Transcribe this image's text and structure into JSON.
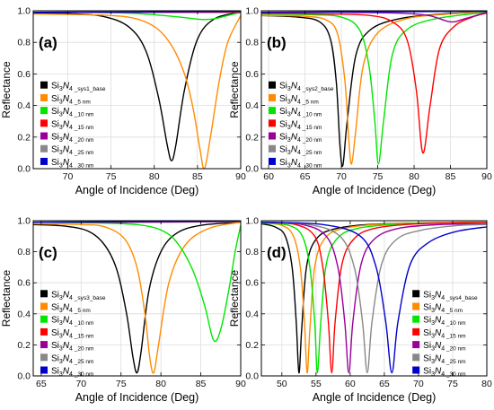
{
  "chart_data": [
    {
      "type": "line",
      "panel_label": "(a)",
      "xlabel": "Angle of Incidence (Deg)",
      "ylabel": "Reflectance",
      "xlim": [
        66,
        90
      ],
      "ylim": [
        0,
        1
      ],
      "xticks": [
        "70",
        "75",
        "80",
        "85",
        "90"
      ],
      "yticks": [
        "0.0",
        "0.2",
        "0.4",
        "0.6",
        "0.8",
        "1.0"
      ],
      "grid": true,
      "legend_position": "lower-left",
      "series": [
        {
          "name": "Si3N4 _sys1_base",
          "color": "#000000",
          "x": [
            66,
            70,
            74,
            77,
            79,
            80.5,
            81.5,
            82,
            82.5,
            83.5,
            85,
            87,
            90
          ],
          "y": [
            0.985,
            0.982,
            0.965,
            0.9,
            0.75,
            0.45,
            0.15,
            0.05,
            0.15,
            0.5,
            0.82,
            0.95,
            0.99
          ]
        },
        {
          "name": "Si3N4 _5 nm",
          "color": "#ff8c00",
          "x": [
            66,
            72,
            77,
            80,
            82,
            83.5,
            84.5,
            85.3,
            85.8,
            86.5,
            87.5,
            88.5,
            90
          ],
          "y": [
            0.98,
            0.975,
            0.96,
            0.9,
            0.78,
            0.6,
            0.38,
            0.12,
            0.0,
            0.2,
            0.55,
            0.8,
            0.97
          ]
        },
        {
          "name": "Si3N4 _10 nm",
          "color": "#00e600",
          "x": [
            66,
            72,
            77,
            80,
            83,
            85.5,
            87,
            88.5,
            90
          ],
          "y": [
            0.99,
            0.99,
            0.985,
            0.975,
            0.96,
            0.945,
            0.95,
            0.97,
            0.99
          ]
        },
        {
          "name": "Si3N4 _15 nm",
          "color": "#ff0000",
          "x": [
            66,
            80,
            90
          ],
          "y": [
            0.99,
            0.99,
            0.99
          ]
        },
        {
          "name": "Si3N4 _20 nm",
          "color": "#990099",
          "x": [
            66,
            80,
            90
          ],
          "y": [
            0.99,
            0.992,
            0.995
          ]
        },
        {
          "name": "Si3N4 _25 nm",
          "color": "#888888",
          "x": [
            66,
            80,
            90
          ],
          "y": [
            0.99,
            0.993,
            0.995
          ]
        },
        {
          "name": "Si3N4 _30 nm",
          "color": "#0000cc",
          "x": [
            66,
            80,
            90
          ],
          "y": [
            0.99,
            0.993,
            0.996
          ]
        }
      ]
    },
    {
      "type": "line",
      "panel_label": "(b)",
      "xlabel": "Angle of Incidence (Deg)",
      "ylabel": "Reflectance",
      "xlim": [
        59,
        90
      ],
      "ylim": [
        0,
        1
      ],
      "xticks": [
        "60",
        "65",
        "70",
        "75",
        "80",
        "85",
        "90"
      ],
      "yticks": [
        "0.0",
        "0.2",
        "0.4",
        "0.6",
        "0.8",
        "1.0"
      ],
      "grid": true,
      "legend_position": "lower-left",
      "series": [
        {
          "name": "Si3N4 _sys2_base",
          "color": "#000000",
          "x": [
            59,
            64,
            67,
            68.5,
            69.3,
            69.8,
            70.2,
            70.8,
            72,
            74,
            78,
            84,
            90
          ],
          "y": [
            0.97,
            0.96,
            0.93,
            0.82,
            0.55,
            0.15,
            0.02,
            0.3,
            0.72,
            0.88,
            0.95,
            0.98,
            0.99
          ]
        },
        {
          "name": "Si3N4 _5 nm",
          "color": "#ff8c00",
          "x": [
            59,
            65,
            68,
            69.5,
            70.5,
            71,
            71.4,
            72,
            73,
            75,
            79,
            85,
            90
          ],
          "y": [
            0.97,
            0.965,
            0.94,
            0.85,
            0.55,
            0.2,
            0.03,
            0.25,
            0.65,
            0.86,
            0.95,
            0.98,
            0.99
          ]
        },
        {
          "name": "Si3N4 _10 nm",
          "color": "#00e600",
          "x": [
            59,
            66,
            70,
            72.5,
            73.8,
            74.6,
            75.1,
            75.8,
            77,
            79,
            83,
            90
          ],
          "y": [
            0.98,
            0.975,
            0.96,
            0.88,
            0.65,
            0.3,
            0.03,
            0.3,
            0.72,
            0.88,
            0.95,
            0.99
          ]
        },
        {
          "name": "Si3N4 _15 nm",
          "color": "#ff0000",
          "x": [
            59,
            68,
            74,
            77,
            79,
            80.3,
            81.2,
            82.2,
            83.5,
            85.5,
            88,
            90
          ],
          "y": [
            0.985,
            0.98,
            0.97,
            0.93,
            0.82,
            0.5,
            0.1,
            0.4,
            0.76,
            0.9,
            0.96,
            0.985
          ]
        },
        {
          "name": "Si3N4 _20 nm",
          "color": "#990099",
          "x": [
            59,
            70,
            78,
            82,
            85,
            87,
            90
          ],
          "y": [
            0.99,
            0.99,
            0.985,
            0.97,
            0.93,
            0.95,
            0.99
          ]
        },
        {
          "name": "Si3N4 _25 nm",
          "color": "#888888",
          "x": [
            59,
            70,
            80,
            90
          ],
          "y": [
            0.99,
            0.992,
            0.995,
            0.997
          ]
        },
        {
          "name": "Si3N4 _30 nm",
          "color": "#0000cc",
          "x": [
            59,
            70,
            80,
            90
          ],
          "y": [
            0.99,
            0.993,
            0.995,
            0.997
          ]
        }
      ]
    },
    {
      "type": "line",
      "panel_label": "(c)",
      "xlabel": "Angle of Incidence (Deg)",
      "ylabel": "Reflectance",
      "xlim": [
        64,
        90
      ],
      "ylim": [
        0,
        1
      ],
      "xticks": [
        "65",
        "70",
        "75",
        "80",
        "85",
        "90"
      ],
      "yticks": [
        "0.0",
        "0.2",
        "0.4",
        "0.6",
        "0.8",
        "1.0"
      ],
      "grid": true,
      "legend_position": "lower-left",
      "series": [
        {
          "name": "Si3N4 _sys3_base",
          "color": "#000000",
          "x": [
            64,
            68,
            71,
            73,
            74.5,
            75.7,
            76.5,
            77,
            77.5,
            78.5,
            80,
            82,
            85,
            90
          ],
          "y": [
            0.975,
            0.965,
            0.93,
            0.84,
            0.68,
            0.4,
            0.12,
            0.02,
            0.15,
            0.55,
            0.8,
            0.92,
            0.97,
            0.99
          ]
        },
        {
          "name": "Si3N4 _5 nm",
          "color": "#ff8c00",
          "x": [
            64,
            70,
            73,
            75.5,
            77,
            78,
            78.6,
            79.1,
            79.7,
            81,
            83,
            86,
            90
          ],
          "y": [
            0.98,
            0.975,
            0.96,
            0.88,
            0.7,
            0.4,
            0.12,
            0.02,
            0.2,
            0.6,
            0.84,
            0.95,
            0.99
          ]
        },
        {
          "name": "Si3N4 _10 nm",
          "color": "#00e600",
          "x": [
            64,
            72,
            77,
            80,
            82,
            84,
            85.5,
            86.6,
            87.5,
            88.5,
            89.3,
            90
          ],
          "y": [
            0.99,
            0.985,
            0.975,
            0.94,
            0.86,
            0.68,
            0.45,
            0.23,
            0.3,
            0.55,
            0.8,
            0.97
          ]
        },
        {
          "name": "Si3N4 _15 nm",
          "color": "#ff0000",
          "x": [
            64,
            78,
            90
          ],
          "y": [
            0.99,
            0.99,
            0.995
          ]
        },
        {
          "name": "Si3N4 _20 nm",
          "color": "#990099",
          "x": [
            64,
            78,
            90
          ],
          "y": [
            0.99,
            0.993,
            0.996
          ]
        },
        {
          "name": "Si3N4 _25 nm",
          "color": "#888888",
          "x": [
            64,
            78,
            90
          ],
          "y": [
            0.99,
            0.993,
            0.996
          ]
        },
        {
          "name": "Si3N4 _30 nm",
          "color": "#0000cc",
          "x": [
            64,
            78,
            90
          ],
          "y": [
            0.99,
            0.994,
            0.997
          ]
        }
      ]
    },
    {
      "type": "line",
      "panel_label": "(d)",
      "xlabel": "Angle of Incidence (Deg)",
      "ylabel": "Reflectance",
      "xlim": [
        47,
        80
      ],
      "ylim": [
        0,
        1
      ],
      "xticks": [
        "50",
        "55",
        "60",
        "65",
        "70",
        "75",
        "80"
      ],
      "yticks": [
        "0.0",
        "0.2",
        "0.4",
        "0.6",
        "0.8",
        "1.0"
      ],
      "grid": true,
      "legend_position": "lower-right",
      "series": [
        {
          "name": "Si3N4 _sys4_base",
          "color": "#000000",
          "x": [
            47,
            49,
            50.5,
            51.5,
            52.1,
            52.5,
            52.9,
            53.6,
            55,
            58,
            65,
            80
          ],
          "y": [
            0.98,
            0.96,
            0.9,
            0.7,
            0.35,
            0.02,
            0.3,
            0.7,
            0.88,
            0.95,
            0.98,
            0.99
          ]
        },
        {
          "name": "Si3N4 _5 nm",
          "color": "#ff8c00",
          "x": [
            47,
            50,
            51.7,
            52.7,
            53.3,
            53.7,
            54.1,
            54.8,
            56.2,
            59,
            66,
            80
          ],
          "y": [
            0.985,
            0.97,
            0.9,
            0.7,
            0.35,
            0.02,
            0.3,
            0.7,
            0.88,
            0.95,
            0.98,
            0.99
          ]
        },
        {
          "name": "Si3N4 _10 nm",
          "color": "#00e600",
          "x": [
            47,
            51,
            53,
            54.1,
            54.8,
            55.2,
            55.7,
            56.5,
            58,
            61,
            68,
            80
          ],
          "y": [
            0.985,
            0.97,
            0.9,
            0.7,
            0.35,
            0.02,
            0.35,
            0.72,
            0.88,
            0.95,
            0.98,
            0.99
          ]
        },
        {
          "name": "Si3N4 _15 nm",
          "color": "#ff0000",
          "x": [
            47,
            52,
            54.8,
            56,
            56.8,
            57.3,
            57.8,
            58.8,
            60.5,
            63.5,
            70,
            80
          ],
          "y": [
            0.99,
            0.975,
            0.9,
            0.7,
            0.35,
            0.02,
            0.35,
            0.72,
            0.88,
            0.95,
            0.98,
            0.99
          ]
        },
        {
          "name": "Si3N4 _20 nm",
          "color": "#990099",
          "x": [
            47,
            53,
            56.5,
            58.2,
            59.2,
            59.8,
            60.4,
            61.6,
            63.5,
            67,
            73,
            80
          ],
          "y": [
            0.99,
            0.975,
            0.9,
            0.7,
            0.35,
            0.02,
            0.35,
            0.72,
            0.88,
            0.95,
            0.975,
            0.98
          ]
        },
        {
          "name": "Si3N4 _25 nm",
          "color": "#888888",
          "x": [
            47,
            54,
            58.5,
            60.6,
            61.8,
            62.5,
            63.2,
            64.6,
            66.8,
            70.5,
            76,
            80
          ],
          "y": [
            0.99,
            0.975,
            0.9,
            0.7,
            0.35,
            0.02,
            0.35,
            0.72,
            0.88,
            0.94,
            0.97,
            0.975
          ]
        },
        {
          "name": "Si3N4 _30 nm",
          "color": "#0000cc",
          "x": [
            47,
            56,
            61.5,
            63.8,
            65.2,
            66.1,
            67,
            68.8,
            71.5,
            75.5,
            80
          ],
          "y": [
            0.99,
            0.975,
            0.9,
            0.7,
            0.35,
            0.02,
            0.35,
            0.72,
            0.86,
            0.93,
            0.96
          ]
        }
      ]
    }
  ]
}
